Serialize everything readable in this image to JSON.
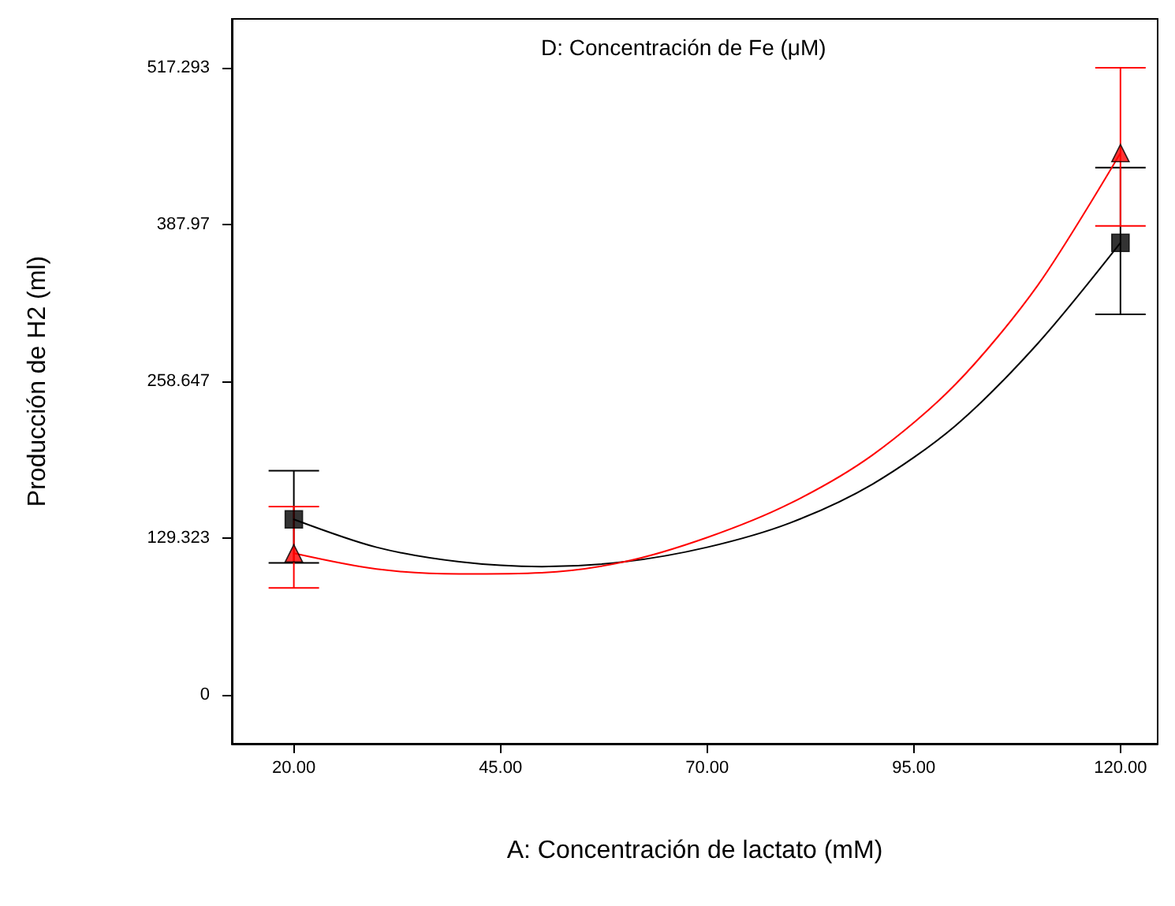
{
  "chart_data": {
    "type": "line",
    "title": "D: Concentración de Fe (μM)",
    "xlabel": "A: Concentración de lactato (mM)",
    "ylabel": "Producción de H2 (ml)",
    "xlim": [
      12.5,
      124.5
    ],
    "xticks": [
      {
        "value": 20,
        "label": "20.00"
      },
      {
        "value": 45,
        "label": "45.00"
      },
      {
        "value": 70,
        "label": "70.00"
      },
      {
        "value": 95,
        "label": "95.00"
      },
      {
        "value": 120,
        "label": "120.00"
      }
    ],
    "ylim": [
      -40,
      557.6
    ],
    "yticks": [
      0,
      129.323,
      258.647,
      387.97,
      517.293
    ],
    "grid": false,
    "series": [
      {
        "color": "#000000",
        "marker": "none",
        "x": [
          20,
          30,
          40,
          50,
          60,
          70,
          80,
          90,
          100,
          110,
          120
        ],
        "values": [
          145,
          122,
          110,
          106,
          110,
          122,
          142,
          174,
          222,
          290,
          373
        ]
      },
      {
        "color": "#ff0000",
        "marker": "none",
        "x": [
          20,
          30,
          40,
          50,
          60,
          70,
          80,
          90,
          100,
          110,
          120
        ],
        "values": [
          117,
          104,
          100,
          101,
          110,
          130,
          158,
          198,
          256,
          338,
          447
        ]
      },
      {
        "type": "scatter",
        "color": "#000000",
        "marker": "square",
        "x": [
          20,
          120
        ],
        "values": [
          145,
          373
        ],
        "errors": [
          [
            109,
            185
          ],
          [
            314,
            435
          ]
        ]
      },
      {
        "type": "scatter",
        "color": "#ff0000",
        "marker": "triangle",
        "x": [
          20,
          120
        ],
        "values": [
          117,
          447
        ],
        "errors": [
          [
            88.4,
            155.6
          ],
          [
            387,
            517.293
          ]
        ]
      }
    ]
  }
}
